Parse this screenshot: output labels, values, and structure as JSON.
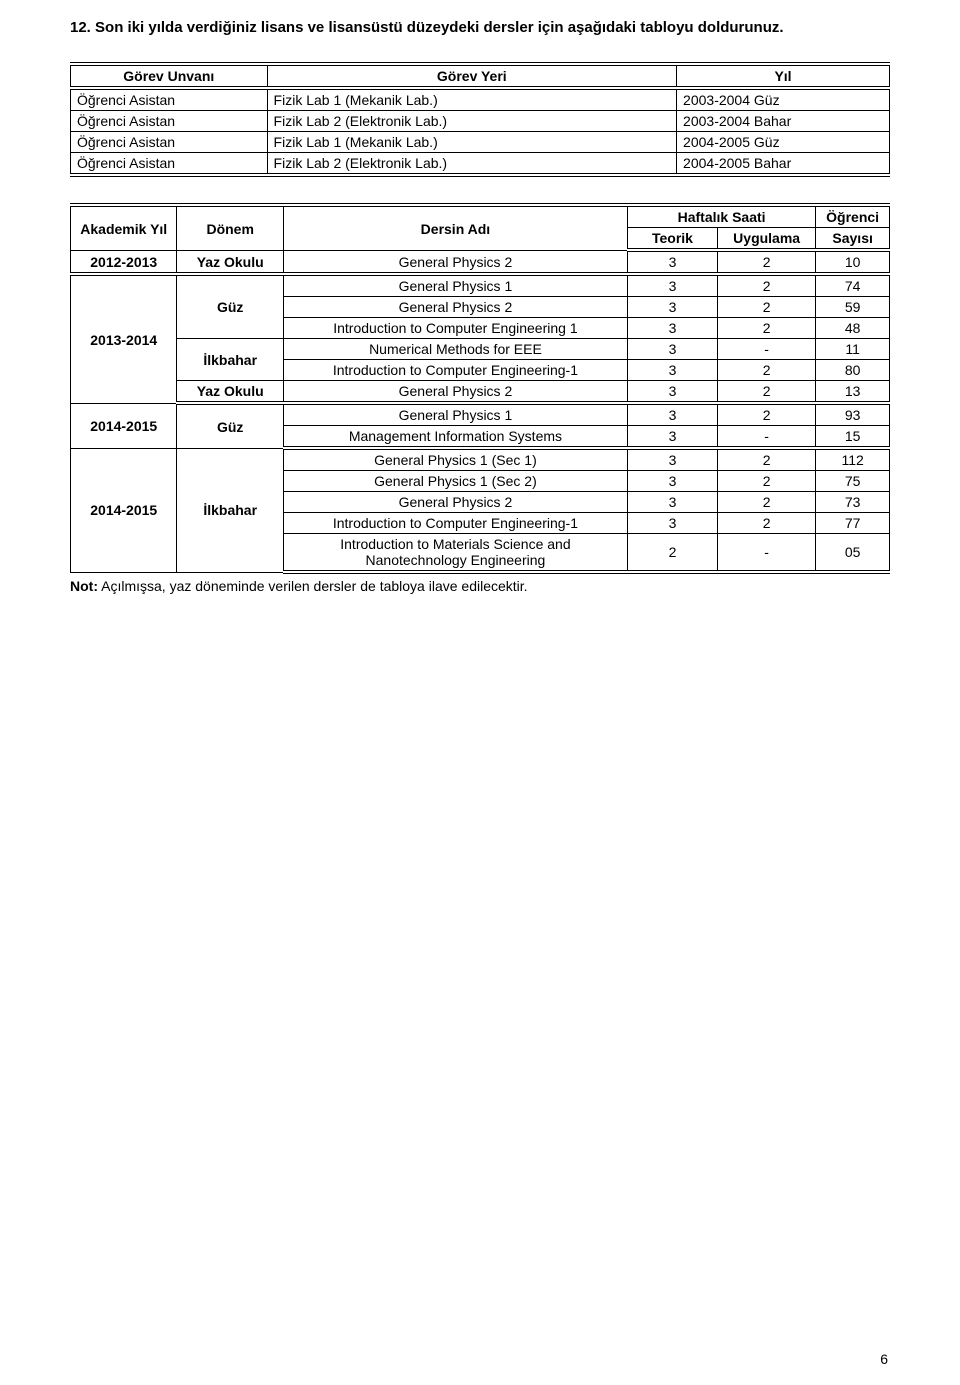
{
  "heading": {
    "num": "12.",
    "text": "Son iki yılda verdiğiniz lisans ve lisansüstü düzeydeki dersler için aşağıdaki tabloyu doldurunuz."
  },
  "table1": {
    "headers": {
      "a": "Görev Unvanı",
      "b": "Görev Yeri",
      "c": "Yıl"
    },
    "rows": [
      {
        "a": "Öğrenci Asistan",
        "b": "Fizik Lab 1 (Mekanik Lab.)",
        "c": "2003-2004 Güz"
      },
      {
        "a": "Öğrenci Asistan",
        "b": "Fizik Lab 2 (Elektronik Lab.)",
        "c": "2003-2004 Bahar"
      },
      {
        "a": "Öğrenci Asistan",
        "b": "Fizik Lab 1 (Mekanik Lab.)",
        "c": "2004-2005 Güz"
      },
      {
        "a": "Öğrenci Asistan",
        "b": "Fizik Lab 2 (Elektronik Lab.)",
        "c": "2004-2005 Bahar"
      }
    ]
  },
  "table2": {
    "headers": {
      "yil": "Akademik Yıl",
      "donem": "Dönem",
      "ders": "Dersin Adı",
      "haftalik": "Haftalık Saati",
      "teorik": "Teorik",
      "uygulama": "Uygulama",
      "sayi1": "Öğrenci",
      "sayi2": "Sayısı"
    },
    "r0": {
      "yil": "2012-2013",
      "donem": "Yaz Okulu",
      "ders": "General Physics 2",
      "t": "3",
      "u": "2",
      "s": "10"
    },
    "r1": {
      "ders": "General Physics 1",
      "t": "3",
      "u": "2",
      "s": "74"
    },
    "r2": {
      "donem": "Güz",
      "ders": "General Physics 2",
      "t": "3",
      "u": "2",
      "s": "59"
    },
    "r3": {
      "yil": "2013-2014",
      "ders": "Introduction to Computer Engineering 1",
      "t": "3",
      "u": "2",
      "s": "48"
    },
    "r4": {
      "donem": "İlkbahar",
      "ders": "Numerical Methods for EEE",
      "t": "3",
      "u": "-",
      "s": "11"
    },
    "r5": {
      "ders": "Introduction to Computer Engineering-1",
      "t": "3",
      "u": "2",
      "s": "80"
    },
    "r6": {
      "donem": "Yaz Okulu",
      "ders": "General Physics 2",
      "t": "3",
      "u": "2",
      "s": "13"
    },
    "r7": {
      "yil": "2014-2015",
      "donem": "Güz",
      "ders": "General Physics 1",
      "t": "3",
      "u": "2",
      "s": "93"
    },
    "r8": {
      "ders": "Management Information Systems",
      "t": "3",
      "u": "-",
      "s": "15"
    },
    "r9": {
      "ders": "General Physics 1 (Sec 1)",
      "t": "3",
      "u": "2",
      "s": "112"
    },
    "r10": {
      "ders": "General Physics 1 (Sec 2)",
      "t": "3",
      "u": "2",
      "s": "75"
    },
    "r11": {
      "yil": "2014-2015",
      "donem": "İlkbahar",
      "ders": "General Physics 2",
      "t": "3",
      "u": "2",
      "s": "73"
    },
    "r12": {
      "ders": "Introduction to Computer Engineering-1",
      "t": "3",
      "u": "2",
      "s": "77"
    },
    "r13": {
      "ders": "Introduction to Materials Science and Nanotechnology Engineering",
      "t": "2",
      "u": "-",
      "s": "05"
    }
  },
  "note": {
    "label": "Not:",
    "text": " Açılmışsa, yaz döneminde verilen dersler de tabloya ilave edilecektir."
  },
  "page_number": "6"
}
